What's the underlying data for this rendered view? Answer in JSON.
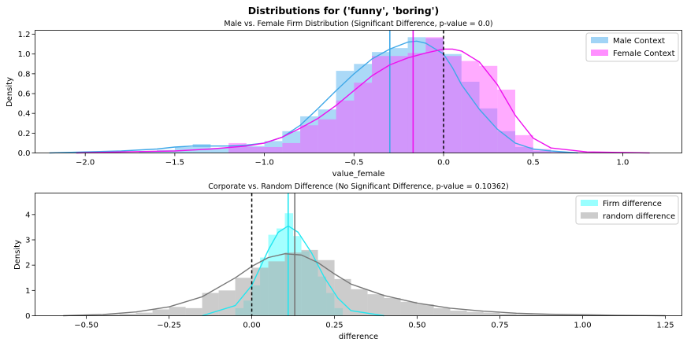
{
  "suptitle": "Distributions for ('funny', 'boring')",
  "chart_data": [
    {
      "type": "histogram",
      "title": "Male vs. Female Firm Distribution (Significant Difference, p-value = 0.0)",
      "xlabel": "value_female",
      "ylabel": "Density",
      "xlim": [
        -2.28,
        1.33
      ],
      "ylim": [
        0,
        1.24
      ],
      "xticks": [
        -2.0,
        -1.5,
        -1.0,
        -0.5,
        0.0,
        0.5,
        1.0
      ],
      "xtick_labels": [
        "−2.0",
        "−1.5",
        "−1.0",
        "−0.5",
        "0.0",
        "0.5",
        "1.0"
      ],
      "yticks": [
        0.0,
        0.2,
        0.4,
        0.6,
        0.8,
        1.0,
        1.2
      ],
      "ytick_labels": [
        "0.0",
        "0.2",
        "0.4",
        "0.6",
        "0.8",
        "1.0",
        "1.2"
      ],
      "legend_position": "top-right",
      "series": [
        {
          "name": "Male Context",
          "color": "#44aaee",
          "bin_edges": [
            -2.0,
            -1.9,
            -1.8,
            -1.7,
            -1.6,
            -1.5,
            -1.4,
            -1.3,
            -1.2,
            -1.1,
            -1.0,
            -0.9,
            -0.8,
            -0.7,
            -0.6,
            -0.5,
            -0.4,
            -0.3,
            -0.2,
            -0.1,
            0.0,
            0.1,
            0.2,
            0.3,
            0.4,
            0.5,
            0.6,
            0.7
          ],
          "values": [
            0.0,
            0.01,
            0.0,
            0.02,
            0.03,
            0.06,
            0.09,
            0.05,
            0.08,
            0.07,
            0.12,
            0.22,
            0.37,
            0.44,
            0.83,
            0.9,
            1.02,
            1.06,
            1.17,
            1.16,
            1.0,
            0.72,
            0.45,
            0.22,
            0.06,
            0.02,
            0.01
          ],
          "kde_x": [
            -2.2,
            -2.0,
            -1.8,
            -1.6,
            -1.5,
            -1.4,
            -1.3,
            -1.2,
            -1.1,
            -1.0,
            -0.9,
            -0.8,
            -0.7,
            -0.6,
            -0.5,
            -0.4,
            -0.3,
            -0.2,
            -0.15,
            -0.1,
            0.0,
            0.05,
            0.1,
            0.2,
            0.3,
            0.4,
            0.5,
            0.6,
            0.75
          ],
          "kde_y": [
            0.0,
            0.01,
            0.02,
            0.04,
            0.06,
            0.07,
            0.07,
            0.07,
            0.08,
            0.1,
            0.16,
            0.28,
            0.45,
            0.63,
            0.8,
            0.95,
            1.05,
            1.12,
            1.13,
            1.11,
            1.0,
            0.86,
            0.69,
            0.44,
            0.24,
            0.1,
            0.04,
            0.02,
            0.0
          ],
          "mean_line": -0.3
        },
        {
          "name": "Female Context",
          "color": "#ff44ff",
          "bin_edges": [
            -1.2,
            -1.1,
            -1.0,
            -0.9,
            -0.8,
            -0.7,
            -0.6,
            -0.5,
            -0.4,
            -0.3,
            -0.2,
            -0.1,
            0.0,
            0.1,
            0.2,
            0.3,
            0.4,
            0.5,
            0.6,
            0.7,
            0.8
          ],
          "values": [
            0.1,
            0.06,
            0.06,
            0.1,
            0.28,
            0.34,
            0.53,
            0.71,
            0.98,
            0.98,
            1.01,
            1.17,
            0.98,
            0.93,
            0.88,
            0.64,
            0.18,
            0.04,
            0.01,
            0.01
          ],
          "kde_x": [
            -2.05,
            -1.8,
            -1.5,
            -1.3,
            -1.1,
            -1.0,
            -0.9,
            -0.8,
            -0.7,
            -0.6,
            -0.5,
            -0.4,
            -0.3,
            -0.2,
            -0.1,
            0.0,
            0.05,
            0.1,
            0.2,
            0.3,
            0.4,
            0.5,
            0.6,
            0.8,
            1.15
          ],
          "kde_y": [
            0.0,
            0.01,
            0.02,
            0.04,
            0.07,
            0.1,
            0.16,
            0.25,
            0.35,
            0.48,
            0.63,
            0.78,
            0.89,
            0.96,
            1.01,
            1.05,
            1.05,
            1.03,
            0.92,
            0.69,
            0.38,
            0.15,
            0.05,
            0.01,
            0.0
          ],
          "mean_line": -0.17
        }
      ],
      "vlines_dashed": [
        0.0
      ]
    },
    {
      "type": "histogram",
      "title": "Corporate vs. Random Difference (No Significant Difference, p-value = 0.10362)",
      "xlabel": "difference",
      "ylabel": "Density",
      "xlim": [
        -0.655,
        1.3
      ],
      "ylim": [
        0,
        4.85
      ],
      "xticks": [
        -0.5,
        -0.25,
        0.0,
        0.25,
        0.5,
        0.75,
        1.0,
        1.25
      ],
      "xtick_labels": [
        "−0.50",
        "−0.25",
        "0.00",
        "0.25",
        "0.50",
        "0.75",
        "1.00",
        "1.25"
      ],
      "yticks": [
        0,
        1,
        2,
        3,
        4
      ],
      "ytick_labels": [
        "0",
        "1",
        "2",
        "3",
        "4"
      ],
      "legend_position": "top-right",
      "series": [
        {
          "name": "Firm difference",
          "color": "#33ffff",
          "bin_edges": [
            -0.05,
            -0.025,
            0.0,
            0.025,
            0.05,
            0.075,
            0.1,
            0.125,
            0.15,
            0.175,
            0.2,
            0.225,
            0.25,
            0.275
          ],
          "values": [
            0.3,
            0.6,
            1.2,
            2.3,
            3.2,
            3.45,
            4.05,
            3.15,
            2.55,
            2.2,
            1.55,
            0.9,
            0.3
          ],
          "kde_x": [
            -0.15,
            -0.05,
            0.0,
            0.05,
            0.08,
            0.11,
            0.14,
            0.18,
            0.22,
            0.26,
            0.3,
            0.4
          ],
          "kde_y": [
            0.0,
            0.4,
            1.2,
            2.6,
            3.3,
            3.55,
            3.3,
            2.5,
            1.5,
            0.7,
            0.2,
            0.0
          ],
          "mean_line": 0.11
        },
        {
          "name": "random difference",
          "color": "#aaaaaa",
          "bin_edges": [
            -0.55,
            -0.5,
            -0.45,
            -0.4,
            -0.35,
            -0.3,
            -0.25,
            -0.2,
            -0.15,
            -0.1,
            -0.05,
            0.0,
            0.05,
            0.1,
            0.15,
            0.2,
            0.25,
            0.3,
            0.35,
            0.4,
            0.45,
            0.5,
            0.55,
            0.6,
            0.65,
            0.7,
            0.75,
            0.8,
            0.85,
            0.9,
            0.95,
            1.0,
            1.05,
            1.1,
            1.15,
            1.2,
            1.25
          ],
          "values": [
            0.02,
            0.02,
            0.05,
            0.08,
            0.12,
            0.25,
            0.35,
            0.3,
            0.9,
            1.0,
            1.5,
            1.9,
            2.15,
            2.5,
            2.6,
            2.2,
            1.45,
            1.05,
            0.85,
            0.7,
            0.55,
            0.45,
            0.3,
            0.2,
            0.15,
            0.12,
            0.08,
            0.06,
            0.05,
            0.04,
            0.03,
            0.03,
            0.02,
            0.02,
            0.01,
            0.01
          ],
          "kde_x": [
            -0.57,
            -0.45,
            -0.35,
            -0.25,
            -0.15,
            -0.05,
            0.0,
            0.05,
            0.1,
            0.15,
            0.2,
            0.25,
            0.3,
            0.4,
            0.5,
            0.6,
            0.7,
            0.8,
            0.9,
            1.0,
            1.1,
            1.25
          ],
          "kde_y": [
            0.0,
            0.05,
            0.15,
            0.35,
            0.75,
            1.5,
            1.95,
            2.3,
            2.45,
            2.4,
            2.1,
            1.65,
            1.25,
            0.8,
            0.5,
            0.3,
            0.18,
            0.1,
            0.06,
            0.04,
            0.02,
            0.0
          ],
          "mean_line": 0.13
        }
      ],
      "vlines_dashed": [
        0.0
      ]
    }
  ]
}
